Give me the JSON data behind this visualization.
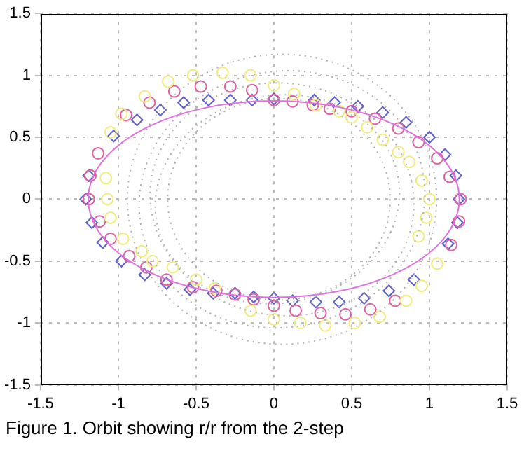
{
  "chart_data": {
    "type": "scatter",
    "xlim": [
      -1.5,
      1.5
    ],
    "ylim": [
      -1.5,
      1.5
    ],
    "xticks": [
      -1.5,
      -1,
      -0.5,
      0,
      0.5,
      1,
      1.5
    ],
    "yticks": [
      -1.5,
      -1,
      -0.5,
      0,
      0.5,
      1,
      1.5
    ],
    "grid": true,
    "annotations": [
      "Figure 1. Orbit showing r/r from the 2-step"
    ],
    "series": [
      {
        "color": "#f0ec80",
        "marker": "circle",
        "x": [
          -1.05,
          -0.98,
          -0.83,
          -0.68,
          -0.52,
          -0.33,
          -0.15,
          0,
          0.13,
          0.27,
          0.42,
          0.5,
          0.6,
          0.7,
          0.8,
          0.87,
          0.95,
          1.0,
          0.98,
          0.93,
          -1.08,
          -1.07,
          -1.05,
          -0.97,
          -0.85,
          -0.78,
          -0.65,
          -0.5,
          -0.38,
          -0.15,
          0,
          0.17,
          0.33,
          0.52,
          0.68,
          0.85,
          0.95,
          1.05
        ],
        "values": [
          0.54,
          0.69,
          0.83,
          0.95,
          1.0,
          1.02,
          1.0,
          0.92,
          0.85,
          0.76,
          0.71,
          0.66,
          0.58,
          0.48,
          0.38,
          0.3,
          0.15,
          0,
          -0.15,
          -0.3,
          0.17,
          0,
          -0.15,
          -0.32,
          -0.42,
          -0.5,
          -0.55,
          -0.65,
          -0.72,
          -0.9,
          -0.97,
          -1.0,
          -1.02,
          -1.0,
          -0.95,
          -0.82,
          -0.7,
          -0.52
        ]
      },
      {
        "color": "#e060a0",
        "marker": "circle",
        "x": [
          1.2,
          1.13,
          1.05,
          0.93,
          0.8,
          0.65,
          0.5,
          0.36,
          0.25,
          0.12,
          0,
          -0.14,
          -0.28,
          -0.47,
          -0.64,
          -0.8,
          -0.95,
          -1.13,
          -1.18,
          -1.19,
          -1.12,
          -1.05,
          -0.93,
          -0.82,
          -0.69,
          -0.52,
          -0.37,
          -0.25,
          -0.13,
          0,
          0.14,
          0.3,
          0.46,
          0.62,
          0.78,
          1.14,
          1.19
        ],
        "values": [
          0,
          0.18,
          0.33,
          0.46,
          0.57,
          0.65,
          0.71,
          0.73,
          0.76,
          0.79,
          0.8,
          0.88,
          0.91,
          0.91,
          0.87,
          0.78,
          0.68,
          0.37,
          0.19,
          0,
          -0.18,
          -0.32,
          -0.46,
          -0.55,
          -0.65,
          -0.71,
          -0.74,
          -0.77,
          -0.81,
          -0.86,
          -0.9,
          -0.92,
          -0.93,
          -0.89,
          -0.82,
          -0.37,
          -0.18
        ]
      },
      {
        "color": "#6060d0",
        "marker": "diamond",
        "x": [
          1.19,
          1.17,
          1.1,
          1.0,
          0.85,
          0.7,
          0.54,
          0.39,
          0.26,
          0,
          -0.14,
          -0.28,
          -0.42,
          -0.58,
          -0.73,
          -0.88,
          -1.03,
          -1.19,
          -1.21,
          -1.17,
          -1.1,
          -0.98,
          -0.83,
          -0.69,
          -0.54,
          -0.39,
          -0.25,
          -0.13,
          0,
          0.12,
          0.27,
          0.42,
          0.58,
          0.74,
          0.9,
          1.12,
          1.18
        ],
        "values": [
          0,
          0.19,
          0.36,
          0.5,
          0.62,
          0.7,
          0.75,
          0.78,
          0.8,
          0.81,
          0.8,
          0.8,
          0.8,
          0.78,
          0.72,
          0.64,
          0.51,
          0.19,
          0,
          -0.19,
          -0.35,
          -0.5,
          -0.61,
          -0.68,
          -0.73,
          -0.76,
          -0.76,
          -0.79,
          -0.8,
          -0.82,
          -0.83,
          -0.83,
          -0.8,
          -0.74,
          -0.65,
          -0.36,
          -0.19
        ]
      }
    ]
  }
}
